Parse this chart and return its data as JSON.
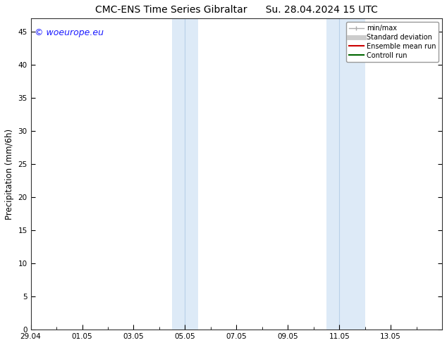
{
  "title": "CMC-ENS Time Series Gibraltar",
  "title_right": "Su. 28.04.2024 15 UTC",
  "ylabel": "Precipitation (mm/6h)",
  "watermark": "© woeurope.eu",
  "xlim_start": 0,
  "xlim_end": 16,
  "ylim": [
    0,
    47
  ],
  "yticks": [
    0,
    5,
    10,
    15,
    20,
    25,
    30,
    35,
    40,
    45
  ],
  "xtick_labels": [
    "29.04",
    "01.05",
    "03.05",
    "05.05",
    "07.05",
    "09.05",
    "11.05",
    "13.05"
  ],
  "xtick_positions": [
    0,
    2,
    4,
    6,
    8,
    10,
    12,
    14
  ],
  "shaded_regions": [
    {
      "xmin": 5.5,
      "xmax": 6.5,
      "color": "#ddeaf7"
    },
    {
      "xmin": 11.5,
      "xmax": 13.0,
      "color": "#ddeaf7"
    }
  ],
  "shaded_dividers": [
    6.0,
    12.0
  ],
  "legend_items": [
    {
      "label": "min/max",
      "color": "#aaaaaa",
      "lw": 1.0,
      "type": "errorbar"
    },
    {
      "label": "Standard deviation",
      "color": "#cccccc",
      "lw": 5,
      "type": "line"
    },
    {
      "label": "Ensemble mean run",
      "color": "#cc0000",
      "lw": 1.5,
      "type": "line"
    },
    {
      "label": "Controll run",
      "color": "#006600",
      "lw": 1.5,
      "type": "line"
    }
  ],
  "background_color": "#ffffff",
  "plot_bg_color": "#ffffff",
  "watermark_color": "#1a1aff",
  "watermark_fontsize": 9,
  "title_fontsize": 10,
  "tick_fontsize": 7.5,
  "ylabel_fontsize": 8.5
}
